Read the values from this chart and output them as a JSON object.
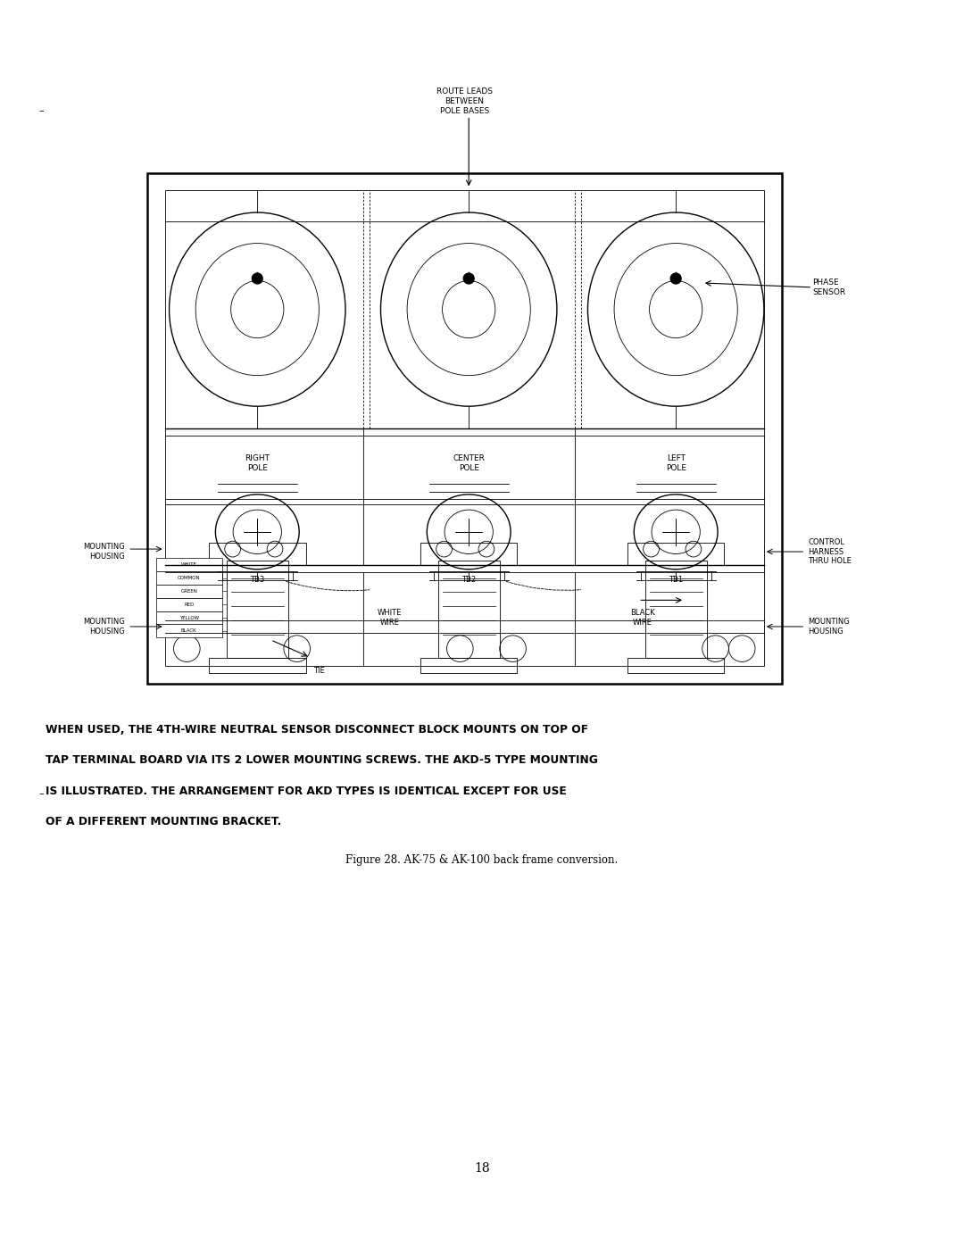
{
  "bg_color": "#ffffff",
  "line_color": "#000000",
  "page_width": 10.8,
  "page_height": 13.97,
  "dpi": 100,
  "body_text_line1": "WHEN USED, THE 4TH-WIRE NEUTRAL SENSOR DISCONNECT BLOCK MOUNTS ON TOP OF",
  "body_text_line2": "TAP TERMINAL BOARD VIA ITS 2 LOWER MOUNTING SCREWS. THE AKD-5 TYPE MOUNTING",
  "body_text_line3": "IS ILLUSTRATED. THE ARRANGEMENT FOR AKD TYPES IS IDENTICAL EXCEPT FOR USE",
  "body_text_line4": "OF A DIFFERENT MOUNTING BRACKET.",
  "caption": "Figure 28. AK-75 & AK-100 back frame conversion.",
  "page_number": "18",
  "route_leads": "ROUTE LEADS\nBETWEEN\nPOLE BASES",
  "phase_sensor": "PHASE\nSENSOR",
  "right_pole": "RIGHT\nPOLE",
  "center_pole": "CENTER\nPOLE",
  "left_pole": "LEFT\nPOLE",
  "mounting_housing": "MOUNTING\nHOUSING",
  "control_harness": "CONTROL\nHARNESS\nTHRU HOLE",
  "tb3": "TB3",
  "tb2": "TB2",
  "tb1": "TB1",
  "white_wire": "WHITE\nWIRE",
  "black_wire": "BLACK\nWIRE",
  "tie": "TIE",
  "wire_labels": [
    "WHITE",
    "COMMON",
    "GREEN",
    "RED",
    "YELLOW",
    "BLACK"
  ]
}
